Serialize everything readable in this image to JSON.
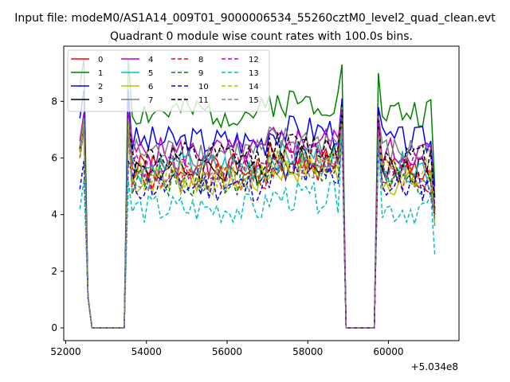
{
  "chart_data": {
    "type": "line",
    "suptitle": "Input file: modeM0/AS1A14_009T01_9000006534_55260cztM0_level2_quad_clean.evt",
    "title": "Quadrant 0 module wise count rates with 100.0s bins.",
    "xlabel": "",
    "ylabel": "",
    "x_offset_label": "+5.034e8",
    "x_offset": 503400000,
    "xlim": [
      51950,
      61750
    ],
    "ylim": [
      -0.45,
      9.95
    ],
    "xticks": [
      52000,
      54000,
      56000,
      58000,
      60000
    ],
    "yticks": [
      0,
      2,
      4,
      6,
      8
    ],
    "grid": false,
    "legend_location": "upper-left",
    "legend_columns": 4,
    "x": [
      52350,
      52450,
      52550,
      52650,
      52750,
      52850,
      52950,
      53050,
      53150,
      53250,
      53350,
      53450,
      53550,
      53650,
      53750,
      53850,
      53950,
      54050,
      54150,
      54250,
      54350,
      54450,
      54550,
      54650,
      54750,
      54850,
      54950,
      55050,
      55150,
      55250,
      55350,
      55450,
      55550,
      55650,
      55750,
      55850,
      55950,
      56050,
      56150,
      56250,
      56350,
      56450,
      56550,
      56650,
      56750,
      56850,
      56950,
      57050,
      57150,
      57250,
      57350,
      57450,
      57550,
      57650,
      57750,
      57850,
      57950,
      58050,
      58150,
      58250,
      58350,
      58450,
      58550,
      58650,
      58750,
      58850,
      58950,
      59050,
      59150,
      59250,
      59350,
      59450,
      59550,
      59650,
      59750,
      59850,
      59950,
      60050,
      60150,
      60250,
      60350,
      60450,
      60550,
      60650,
      60750,
      60850,
      60950,
      61050,
      61150
    ],
    "gaps": [
      [
        52650,
        53450
      ],
      [
        58950,
        59650
      ]
    ],
    "series": [
      {
        "name": "0",
        "color": "#ff0000",
        "dash": "solid",
        "level": 5.6,
        "peak_a": 7.3,
        "peak_b": 7.2,
        "end": 4.0,
        "seed": 1
      },
      {
        "name": "1",
        "color": "#008000",
        "dash": "solid",
        "level": 7.6,
        "peak_a": 9.5,
        "peak_b": 9.0,
        "end": 5.0,
        "seed": 2
      },
      {
        "name": "2",
        "color": "#0000ff",
        "dash": "solid",
        "level": 6.6,
        "peak_a": 8.4,
        "peak_b": 7.8,
        "end": 4.6,
        "seed": 3
      },
      {
        "name": "3",
        "color": "#000000",
        "dash": "solid",
        "level": 5.6,
        "peak_a": 7.3,
        "peak_b": 7.6,
        "end": 4.0,
        "seed": 4
      },
      {
        "name": "4",
        "color": "#bf00bf",
        "dash": "solid",
        "level": 6.2,
        "peak_a": 7.6,
        "peak_b": 7.3,
        "end": 4.2,
        "seed": 5
      },
      {
        "name": "5",
        "color": "#00bfbf",
        "dash": "solid",
        "level": 5.7,
        "peak_a": 7.4,
        "peak_b": 7.2,
        "end": 3.6,
        "seed": 6
      },
      {
        "name": "6",
        "color": "#bfbf00",
        "dash": "solid",
        "level": 5.2,
        "peak_a": 7.0,
        "peak_b": 7.3,
        "end": 3.8,
        "seed": 7
      },
      {
        "name": "7",
        "color": "#808080",
        "dash": "solid",
        "level": 6.2,
        "peak_a": 7.4,
        "peak_b": 7.5,
        "end": 4.2,
        "seed": 8
      },
      {
        "name": "8",
        "color": "#ff0000",
        "dash": "dashed",
        "level": 5.3,
        "peak_a": 7.0,
        "peak_b": 7.0,
        "end": 3.9,
        "seed": 9
      },
      {
        "name": "9",
        "color": "#008000",
        "dash": "dashed",
        "level": 5.2,
        "peak_a": 7.2,
        "peak_b": 7.1,
        "end": 4.1,
        "seed": 10
      },
      {
        "name": "10",
        "color": "#0000ff",
        "dash": "dashed",
        "level": 5.0,
        "peak_a": 5.9,
        "peak_b": 6.6,
        "end": 3.9,
        "seed": 11
      },
      {
        "name": "11",
        "color": "#000000",
        "dash": "dashed",
        "level": 6.0,
        "peak_a": 7.2,
        "peak_b": 7.4,
        "end": 4.1,
        "seed": 12
      },
      {
        "name": "12",
        "color": "#bf00bf",
        "dash": "dashed",
        "level": 5.7,
        "peak_a": 7.0,
        "peak_b": 7.4,
        "end": 4.0,
        "seed": 13
      },
      {
        "name": "13",
        "color": "#00bfbf",
        "dash": "dashed",
        "level": 4.2,
        "peak_a": 5.2,
        "peak_b": 6.6,
        "end": 2.6,
        "seed": 14
      },
      {
        "name": "14",
        "color": "#bfbf00",
        "dash": "dashed",
        "level": 5.4,
        "peak_a": 7.2,
        "peak_b": 6.9,
        "end": 3.7,
        "seed": 15
      },
      {
        "name": "15",
        "color": "#808080",
        "dash": "dashed",
        "level": 5.3,
        "peak_a": 7.0,
        "peak_b": 6.9,
        "end": 3.8,
        "seed": 16
      }
    ]
  }
}
